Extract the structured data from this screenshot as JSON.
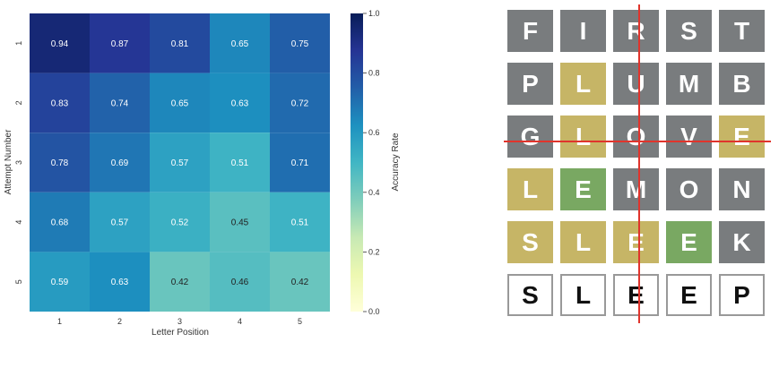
{
  "chart_data": {
    "type": "heatmap",
    "xlabel": "Letter Position",
    "ylabel": "Attempt Number",
    "x_categories": [
      "1",
      "2",
      "3",
      "4",
      "5"
    ],
    "y_categories": [
      "1",
      "2",
      "3",
      "4",
      "5"
    ],
    "values": [
      [
        0.94,
        0.87,
        0.81,
        0.65,
        0.75
      ],
      [
        0.83,
        0.74,
        0.65,
        0.63,
        0.72
      ],
      [
        0.78,
        0.69,
        0.57,
        0.51,
        0.71
      ],
      [
        0.68,
        0.57,
        0.52,
        0.45,
        0.51
      ],
      [
        0.59,
        0.63,
        0.42,
        0.46,
        0.42
      ]
    ],
    "colorbar": {
      "label": "Accuracy Rate",
      "range": [
        0.0,
        1.0
      ],
      "ticks": [
        "0.0",
        "0.2",
        "0.4",
        "0.6",
        "0.8",
        "1.0"
      ],
      "colormap": "YlGnBu"
    }
  },
  "wordle": {
    "rows": [
      {
        "letters": [
          "F",
          "I",
          "R",
          "S",
          "T"
        ],
        "states": [
          "absent",
          "absent",
          "absent",
          "absent",
          "absent"
        ]
      },
      {
        "letters": [
          "P",
          "L",
          "U",
          "M",
          "B"
        ],
        "states": [
          "absent",
          "present",
          "absent",
          "absent",
          "absent"
        ]
      },
      {
        "letters": [
          "G",
          "L",
          "O",
          "V",
          "E"
        ],
        "states": [
          "absent",
          "present",
          "absent",
          "absent",
          "present"
        ]
      },
      {
        "letters": [
          "L",
          "E",
          "M",
          "O",
          "N"
        ],
        "states": [
          "present",
          "correct",
          "absent",
          "absent",
          "absent"
        ]
      },
      {
        "letters": [
          "S",
          "L",
          "E",
          "E",
          "K"
        ],
        "states": [
          "present",
          "present",
          "present",
          "correct",
          "absent"
        ]
      },
      {
        "letters": [
          "S",
          "L",
          "E",
          "E",
          "P"
        ],
        "states": [
          "typed",
          "typed",
          "typed",
          "typed",
          "typed"
        ]
      }
    ],
    "colors": {
      "absent": "#797c7e",
      "present": "#c6b566",
      "correct": "#79a862",
      "crosshair": "#e0342c"
    }
  }
}
